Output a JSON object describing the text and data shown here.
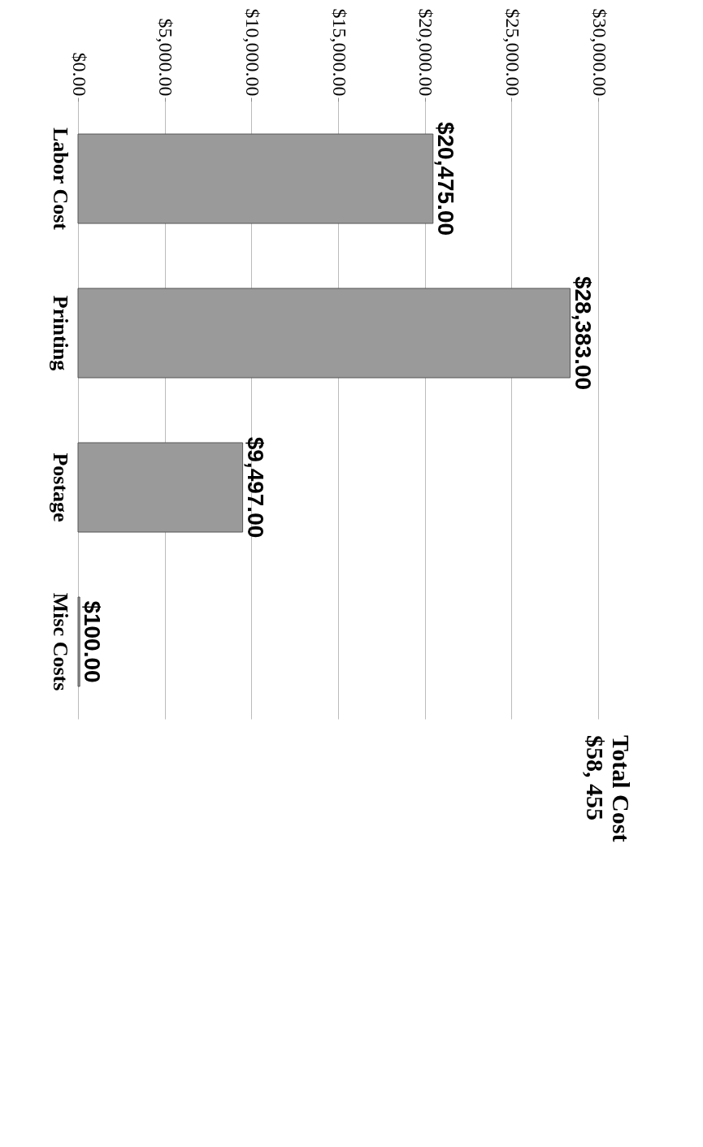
{
  "chart_data": {
    "type": "bar",
    "orientation": "horizontal",
    "title": "Total Cost\n$58, 455",
    "categories": [
      "Labor Cost",
      "Printing",
      "Postage",
      "Misc Costs"
    ],
    "values": [
      20475,
      28383,
      9497,
      100
    ],
    "color": "#9a9a9a",
    "xlim": [
      0,
      30000
    ],
    "xticks": [
      {
        "value": 0,
        "label": "$0.00"
      },
      {
        "value": 5000,
        "label": "$5,000.00"
      },
      {
        "value": 10000,
        "label": "$10,000.00"
      },
      {
        "value": 15000,
        "label": "$15,000.00"
      },
      {
        "value": 20000,
        "label": "$20,000.00"
      },
      {
        "value": 25000,
        "label": "$25,000.00"
      },
      {
        "value": 30000,
        "label": "$30,000.00"
      }
    ],
    "value_labels": [
      "$20,475.00",
      "$28,383.00",
      "$9,497.00",
      "$100.00"
    ],
    "grid": "x"
  }
}
